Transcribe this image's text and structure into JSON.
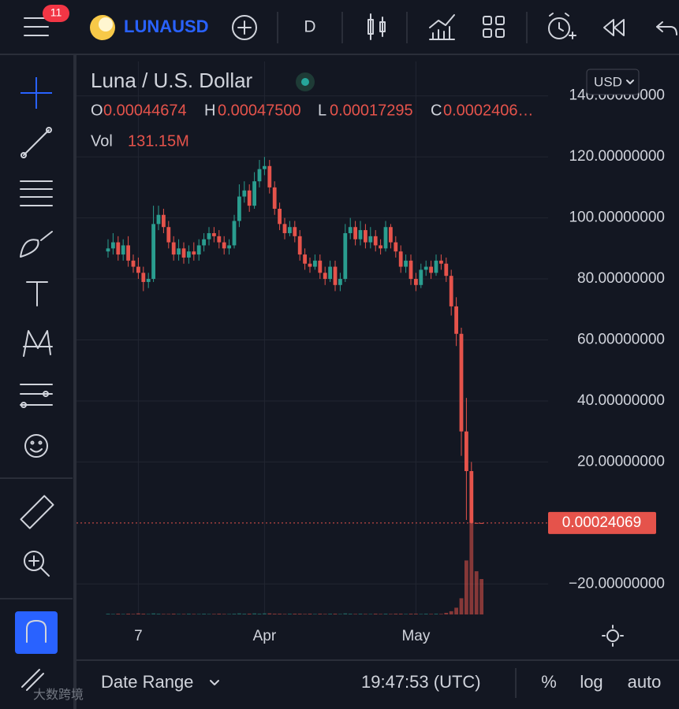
{
  "toolbar": {
    "badge": "11",
    "symbol": "LUNAUSD",
    "interval": "D"
  },
  "legend": {
    "o_label": "O",
    "o_value": "0.00044674",
    "h_label": "H",
    "h_value": "0.00047500",
    "l_label": "L",
    "l_value": "0.00017295",
    "c_label": "C",
    "c_value": "0.0002406…",
    "vol_label": "Vol",
    "vol_value": "131.15M"
  },
  "chart_data": {
    "type": "candlestick",
    "title": "Luna / U.S. Dollar",
    "currency": "USD",
    "categories": [
      null,
      null,
      null,
      null,
      null,
      null,
      "7",
      null,
      null,
      null,
      null,
      null,
      null,
      null,
      null,
      null,
      null,
      null,
      null,
      null,
      null,
      null,
      null,
      null,
      null,
      null,
      null,
      null,
      null,
      null,
      null,
      "Apr",
      null,
      null,
      null,
      null,
      null,
      null,
      null,
      null,
      null,
      null,
      null,
      null,
      null,
      null,
      null,
      null,
      null,
      null,
      null,
      null,
      null,
      null,
      null,
      null,
      null,
      null,
      null,
      null,
      null,
      "May",
      null,
      null,
      null,
      null,
      null,
      null,
      null,
      null,
      null,
      null,
      null,
      null,
      null
    ],
    "open": [
      89,
      90,
      92,
      88,
      91,
      86,
      84,
      82,
      79,
      80,
      98,
      101,
      97,
      92,
      88,
      90,
      87,
      89,
      88,
      91,
      93,
      95,
      94,
      92,
      90,
      91,
      99,
      107,
      109,
      104,
      112,
      116,
      117,
      110,
      103,
      98,
      95,
      97,
      94,
      88,
      85,
      84,
      86,
      82,
      80,
      84,
      78,
      80,
      95,
      97,
      93,
      96,
      92,
      94,
      91,
      90,
      97,
      92,
      89,
      84,
      86,
      80,
      78,
      83,
      84,
      82,
      86,
      85,
      81,
      71,
      62,
      30,
      17,
      0.02,
      0.00044674
    ],
    "high": [
      93,
      95,
      94,
      93,
      94,
      88,
      87,
      84,
      82,
      104,
      104,
      103,
      99,
      94,
      93,
      92,
      91,
      92,
      93,
      95,
      97,
      97,
      96,
      94,
      93,
      101,
      111,
      112,
      111,
      115,
      119,
      120,
      119,
      112,
      105,
      100,
      99,
      99,
      96,
      90,
      87,
      88,
      88,
      84,
      86,
      86,
      82,
      98,
      100,
      99,
      99,
      98,
      97,
      96,
      93,
      99,
      98,
      94,
      91,
      88,
      88,
      82,
      85,
      86,
      86,
      88,
      88,
      87,
      83,
      74,
      64,
      41,
      20,
      0.05,
      0.000475
    ],
    "low": [
      87,
      88,
      86,
      86,
      84,
      82,
      80,
      76,
      77,
      79,
      96,
      95,
      90,
      86,
      86,
      85,
      85,
      86,
      86,
      89,
      91,
      92,
      90,
      88,
      88,
      90,
      97,
      105,
      102,
      103,
      110,
      114,
      108,
      101,
      96,
      93,
      94,
      92,
      86,
      83,
      82,
      83,
      80,
      78,
      79,
      76,
      76,
      79,
      93,
      91,
      91,
      90,
      90,
      89,
      88,
      89,
      90,
      87,
      82,
      82,
      78,
      76,
      77,
      81,
      80,
      81,
      83,
      79,
      68,
      58,
      22,
      1,
      0,
      0.0003,
      0.00017295
    ],
    "close": [
      90,
      92,
      88,
      91,
      86,
      84,
      82,
      79,
      80,
      98,
      101,
      97,
      92,
      88,
      90,
      87,
      89,
      88,
      91,
      93,
      95,
      94,
      92,
      90,
      91,
      99,
      107,
      109,
      104,
      112,
      116,
      117,
      110,
      103,
      98,
      95,
      97,
      94,
      88,
      85,
      84,
      86,
      82,
      80,
      84,
      78,
      80,
      95,
      97,
      93,
      96,
      92,
      94,
      91,
      90,
      97,
      92,
      89,
      84,
      86,
      80,
      78,
      83,
      84,
      82,
      86,
      85,
      81,
      71,
      62,
      30,
      17,
      0.02,
      0.00044674,
      0.00024069
    ],
    "volume": [
      3,
      2,
      3,
      2,
      3,
      2,
      4,
      3,
      2,
      4,
      3,
      2,
      2,
      3,
      2,
      2,
      3,
      2,
      2,
      3,
      2,
      2,
      3,
      2,
      2,
      3,
      4,
      3,
      3,
      4,
      3,
      4,
      4,
      3,
      3,
      2,
      3,
      3,
      3,
      2,
      3,
      2,
      3,
      2,
      3,
      3,
      2,
      4,
      3,
      2,
      3,
      2,
      2,
      3,
      2,
      3,
      2,
      3,
      3,
      2,
      3,
      3,
      2,
      3,
      2,
      3,
      2,
      6,
      12,
      25,
      60,
      200,
      350,
      160,
      131.15
    ],
    "up_color": "#2a9d8f",
    "down_color": "#e5534b",
    "ylim": [
      -30,
      150
    ],
    "yticks": [
      {
        "value": -20,
        "label": "−20.00000000"
      },
      {
        "value": 20,
        "label": "20.00000000"
      },
      {
        "value": 40,
        "label": "40.00000000"
      },
      {
        "value": 60,
        "label": "60.00000000"
      },
      {
        "value": 80,
        "label": "80.00000000"
      },
      {
        "value": 100,
        "label": "100.00000000"
      },
      {
        "value": 120,
        "label": "120.00000000"
      },
      {
        "value": 140,
        "label": "140.00000000"
      }
    ],
    "grid": true,
    "last_price": 0.00024069
  },
  "bottom_bar": {
    "date_range": "Date Range",
    "time": "19:47:53 (UTC)",
    "percent": "%",
    "log": "log",
    "auto": "auto"
  },
  "watermark": "大数跨境"
}
